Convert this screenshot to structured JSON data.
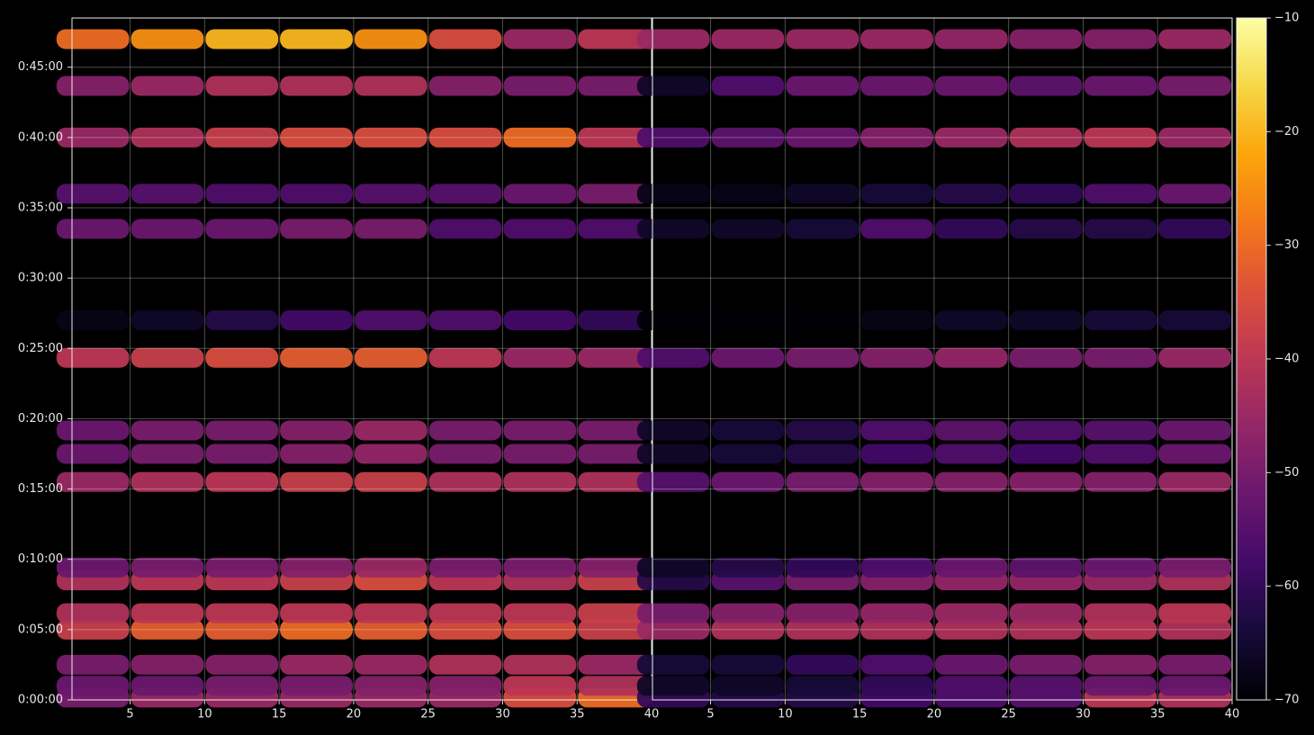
{
  "chart_data": [
    {
      "type": "heatmap",
      "colormap": "inferno",
      "grid": true,
      "x": [
        2.5,
        7.5,
        12.5,
        17.5,
        22.5,
        27.5,
        32.5,
        37.5
      ],
      "y": [
        10,
        60,
        150,
        300,
        370,
        510,
        565,
        930,
        1050,
        1150,
        1460,
        1620,
        2010,
        2160,
        2400,
        2620,
        2820
      ],
      "xlim": [
        1.1,
        40
      ],
      "xticks": [
        5,
        10,
        15,
        20,
        25,
        30,
        35,
        40
      ],
      "ylim": [
        0,
        2910
      ],
      "yticks": [
        {
          "value": 0,
          "label": "0:00:00"
        },
        {
          "value": 300,
          "label": "0:05:00"
        },
        {
          "value": 600,
          "label": "0:10:00"
        },
        {
          "value": 900,
          "label": "0:15:00"
        },
        {
          "value": 1200,
          "label": "0:20:00"
        },
        {
          "value": 1500,
          "label": "0:25:00"
        },
        {
          "value": 1800,
          "label": "0:30:00"
        },
        {
          "value": 2100,
          "label": "0:35:00"
        },
        {
          "value": 2400,
          "label": "0:40:00"
        },
        {
          "value": 2700,
          "label": "0:45:00"
        }
      ],
      "z": [
        [
          -50,
          -45,
          -45,
          -45,
          -45,
          -45,
          -35,
          -30
        ],
        [
          -52,
          -52,
          -50,
          -50,
          -48,
          -48,
          -40,
          -42
        ],
        [
          -50,
          -48,
          -48,
          -45,
          -45,
          -42,
          -42,
          -45
        ],
        [
          -38,
          -32,
          -32,
          -30,
          -32,
          -35,
          -35,
          -38
        ],
        [
          -42,
          -40,
          -40,
          -40,
          -40,
          -40,
          -40,
          -38
        ],
        [
          -42,
          -40,
          -40,
          -38,
          -35,
          -40,
          -42,
          -38
        ],
        [
          -52,
          -50,
          -50,
          -48,
          -45,
          -50,
          -50,
          -48
        ],
        [
          -45,
          -42,
          -40,
          -38,
          -38,
          -42,
          -42,
          -42
        ],
        [
          -52,
          -50,
          -50,
          -48,
          -46,
          -50,
          -50,
          -50
        ],
        [
          -52,
          -50,
          -50,
          -48,
          -45,
          -50,
          -50,
          -50
        ],
        [
          -40,
          -38,
          -35,
          -32,
          -32,
          -40,
          -45,
          -45
        ],
        [
          -68,
          -66,
          -62,
          -58,
          -56,
          -56,
          -58,
          -60
        ],
        [
          -52,
          -52,
          -52,
          -50,
          -50,
          -56,
          -56,
          -56
        ],
        [
          -55,
          -55,
          -56,
          -56,
          -55,
          -55,
          -52,
          -50
        ],
        [
          -45,
          -42,
          -38,
          -35,
          -35,
          -35,
          -30,
          -40
        ],
        [
          -48,
          -45,
          -42,
          -42,
          -42,
          -48,
          -50,
          -50
        ],
        [
          -30,
          -25,
          -20,
          -20,
          -25,
          -35,
          -45,
          -40
        ]
      ]
    },
    {
      "type": "heatmap",
      "colormap": "inferno",
      "grid": true,
      "x": [
        2.5,
        7.5,
        12.5,
        17.5,
        22.5,
        27.5,
        32.5,
        37.5
      ],
      "y": [
        10,
        60,
        150,
        300,
        370,
        510,
        565,
        930,
        1050,
        1150,
        1460,
        1620,
        2010,
        2160,
        2400,
        2620,
        2820
      ],
      "xlim": [
        1.1,
        40
      ],
      "xticks": [
        5,
        10,
        15,
        20,
        25,
        30,
        35,
        40
      ],
      "ylim": [
        0,
        2910
      ],
      "z": [
        [
          -60,
          -62,
          -62,
          -58,
          -56,
          -55,
          -40,
          -42
        ],
        [
          -66,
          -66,
          -64,
          -60,
          -56,
          -55,
          -52,
          -52
        ],
        [
          -64,
          -64,
          -60,
          -56,
          -52,
          -50,
          -48,
          -50
        ],
        [
          -45,
          -42,
          -42,
          -42,
          -42,
          -42,
          -40,
          -42
        ],
        [
          -50,
          -48,
          -48,
          -46,
          -45,
          -45,
          -42,
          -40
        ],
        [
          -62,
          -55,
          -50,
          -48,
          -46,
          -46,
          -45,
          -42
        ],
        [
          -66,
          -62,
          -60,
          -56,
          -52,
          -54,
          -52,
          -50
        ],
        [
          -55,
          -52,
          -50,
          -48,
          -48,
          -48,
          -48,
          -45
        ],
        [
          -66,
          -64,
          -62,
          -58,
          -56,
          -58,
          -56,
          -52
        ],
        [
          -66,
          -64,
          -62,
          -56,
          -54,
          -56,
          -55,
          -52
        ],
        [
          -56,
          -52,
          -50,
          -48,
          -46,
          -50,
          -50,
          -45
        ],
        [
          -70,
          -70,
          -70,
          -68,
          -66,
          -66,
          -64,
          -64
        ],
        [
          -66,
          -66,
          -64,
          -56,
          -60,
          -62,
          -62,
          -60
        ],
        [
          -68,
          -68,
          -66,
          -64,
          -62,
          -60,
          -56,
          -52
        ],
        [
          -56,
          -54,
          -52,
          -48,
          -45,
          -42,
          -40,
          -45
        ],
        [
          -66,
          -56,
          -52,
          -52,
          -52,
          -54,
          -52,
          -50
        ],
        [
          -45,
          -45,
          -45,
          -45,
          -46,
          -48,
          -48,
          -45
        ]
      ],
      "colorbar": {
        "lim": [
          -70,
          -10
        ],
        "ticks": [
          {
            "value": -70,
            "label": "−70"
          },
          {
            "value": -60,
            "label": "−60"
          },
          {
            "value": -50,
            "label": "−50"
          },
          {
            "value": -40,
            "label": "−40"
          },
          {
            "value": -30,
            "label": "−30"
          },
          {
            "value": -20,
            "label": "−20"
          },
          {
            "value": -10,
            "label": "−10"
          }
        ]
      }
    }
  ]
}
